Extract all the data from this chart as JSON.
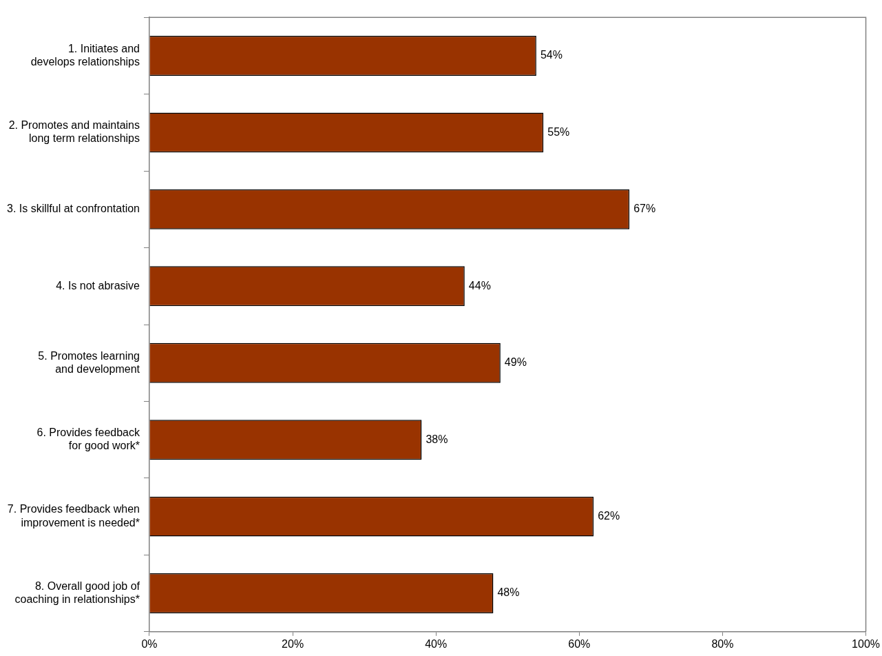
{
  "chart_data": {
    "type": "bar",
    "orientation": "horizontal",
    "categories": [
      "1. Initiates and develops relationships",
      "2. Promotes and maintains long term relationships",
      "3. Is skillful at confrontation",
      "4. Is not abrasive",
      "5. Promotes learning and development",
      "6. Provides feedback for good work*",
      "7. Provides feedback when improvement is needed*",
      "8. Overall good job of coaching in relationships*"
    ],
    "values": [
      54,
      55,
      67,
      44,
      49,
      38,
      62,
      48
    ],
    "value_labels": [
      "54%",
      "55%",
      "67%",
      "44%",
      "49%",
      "38%",
      "62%",
      "48%"
    ],
    "color": "#993300",
    "xlim": [
      0,
      100
    ],
    "xticks": [
      {
        "value": 0,
        "label": "0%"
      },
      {
        "value": 20,
        "label": "20%"
      },
      {
        "value": 40,
        "label": "40%"
      },
      {
        "value": 60,
        "label": "60%"
      },
      {
        "value": 80,
        "label": "80%"
      },
      {
        "value": 100,
        "label": "100%"
      }
    ],
    "grid": false,
    "legend": false
  }
}
